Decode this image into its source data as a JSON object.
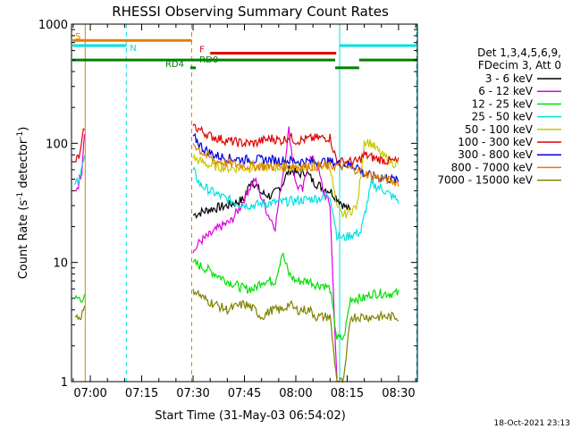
{
  "chart_data": {
    "type": "line",
    "title": "RHESSI Observing Summary Count Rates",
    "xlabel": "Start Time (31-May-03 06:54:02)",
    "ylabel": "Count Rate (s",
    "ylabel_sup": "-1",
    "ylabel_end": " detector",
    "ylabel_sup2": "-1",
    "ylabel_close": ")",
    "y_scale": "log",
    "ylim": [
      1,
      1000
    ],
    "xlim_minutes": [
      -5.5,
      95.5
    ],
    "x_ticks": [
      {
        "label": "07:00",
        "min": 0
      },
      {
        "label": "07:15",
        "min": 15
      },
      {
        "label": "07:30",
        "min": 30
      },
      {
        "label": "07:45",
        "min": 45
      },
      {
        "label": "08:00",
        "min": 60
      },
      {
        "label": "08:15",
        "min": 75
      },
      {
        "label": "08:30",
        "min": 90
      }
    ],
    "y_ticks": [
      {
        "label": "1",
        "value": 1
      },
      {
        "label": "10",
        "value": 10
      },
      {
        "label": "100",
        "value": 100
      },
      {
        "label": "1000",
        "value": 1000
      }
    ],
    "legend_header": [
      "Det 1,3,4,5,6,9,",
      "FDecim 3, Att 0"
    ],
    "series": [
      {
        "name": "3 - 6 keV",
        "color": "#000000",
        "points": [
          [
            30,
            25
          ],
          [
            35,
            28
          ],
          [
            40,
            30
          ],
          [
            45,
            34
          ],
          [
            47,
            50
          ],
          [
            50,
            38
          ],
          [
            53,
            36
          ],
          [
            56,
            45
          ],
          [
            58,
            60
          ],
          [
            61,
            55
          ],
          [
            63,
            58
          ],
          [
            65,
            48
          ],
          [
            68,
            42
          ],
          [
            70,
            40
          ],
          [
            72,
            35
          ],
          [
            74,
            30
          ],
          [
            76,
            27
          ]
        ]
      },
      {
        "name": "6 - 12 keV",
        "color": "#e000e0",
        "points": [
          [
            -4.5,
            40
          ],
          [
            -3.5,
            45
          ],
          [
            -2.5,
            60
          ],
          [
            -1.7,
            130
          ],
          [
            30,
            12
          ],
          [
            32,
            15
          ],
          [
            35,
            17
          ],
          [
            38,
            20
          ],
          [
            41,
            22
          ],
          [
            44,
            30
          ],
          [
            46,
            40
          ],
          [
            48,
            50
          ],
          [
            50,
            35
          ],
          [
            52,
            25
          ],
          [
            54,
            20
          ],
          [
            56,
            50
          ],
          [
            58,
            130
          ],
          [
            60,
            45
          ],
          [
            62,
            40
          ],
          [
            64,
            75
          ],
          [
            66,
            70
          ],
          [
            68,
            40
          ],
          [
            70,
            30
          ],
          [
            72,
            1
          ]
        ]
      },
      {
        "name": "12 - 25 keV",
        "color": "#00e000",
        "points": [
          [
            -4.5,
            5
          ],
          [
            -3,
            5
          ],
          [
            -1.7,
            5
          ],
          [
            30,
            10
          ],
          [
            35,
            8.5
          ],
          [
            40,
            7
          ],
          [
            45,
            6
          ],
          [
            48,
            6
          ],
          [
            50,
            7
          ],
          [
            54,
            7
          ],
          [
            56,
            12
          ],
          [
            58,
            8
          ],
          [
            60,
            7
          ],
          [
            64,
            7
          ],
          [
            66,
            6.5
          ],
          [
            68,
            6.5
          ],
          [
            70,
            6
          ],
          [
            72,
            2.3
          ],
          [
            74,
            2.3
          ],
          [
            76,
            5
          ],
          [
            80,
            5
          ],
          [
            82,
            5.5
          ],
          [
            85,
            5.5
          ],
          [
            88,
            5.5
          ],
          [
            90,
            5.5
          ]
        ]
      },
      {
        "name": "25 - 50 keV",
        "color": "#00e0e0",
        "points": [
          [
            -4.5,
            45
          ],
          [
            -3,
            55
          ],
          [
            -1.7,
            75
          ],
          [
            30,
            60
          ],
          [
            32,
            45
          ],
          [
            35,
            40
          ],
          [
            38,
            36
          ],
          [
            41,
            33
          ],
          [
            44,
            31
          ],
          [
            47,
            30
          ],
          [
            50,
            31
          ],
          [
            55,
            32
          ],
          [
            60,
            33
          ],
          [
            64,
            34
          ],
          [
            68,
            35
          ],
          [
            70,
            37
          ],
          [
            72,
            17
          ],
          [
            74,
            16
          ],
          [
            76,
            17
          ],
          [
            79,
            18
          ],
          [
            82,
            45
          ],
          [
            85,
            42
          ],
          [
            88,
            36
          ],
          [
            90,
            33
          ]
        ]
      },
      {
        "name": "50 - 100 keV",
        "color": "#c8c800",
        "points": [
          [
            30,
            75
          ],
          [
            35,
            65
          ],
          [
            40,
            62
          ],
          [
            45,
            62
          ],
          [
            50,
            63
          ],
          [
            55,
            63
          ],
          [
            60,
            63
          ],
          [
            65,
            64
          ],
          [
            70,
            65
          ],
          [
            72,
            28
          ],
          [
            74,
            25
          ],
          [
            76,
            27
          ],
          [
            78,
            30
          ],
          [
            80,
            105
          ],
          [
            82,
            100
          ],
          [
            85,
            80
          ],
          [
            88,
            70
          ],
          [
            90,
            65
          ]
        ]
      },
      {
        "name": "100 - 300 keV",
        "color": "#e00000",
        "points": [
          [
            -4.5,
            70
          ],
          [
            -3,
            80
          ],
          [
            -1.7,
            140
          ],
          [
            30,
            140
          ],
          [
            35,
            115
          ],
          [
            40,
            105
          ],
          [
            45,
            100
          ],
          [
            48,
            100
          ],
          [
            50,
            105
          ],
          [
            53,
            110
          ],
          [
            56,
            105
          ],
          [
            58,
            115
          ],
          [
            60,
            105
          ],
          [
            65,
            110
          ],
          [
            70,
            112
          ],
          [
            72,
            70
          ],
          [
            75,
            70
          ],
          [
            78,
            70
          ],
          [
            80,
            80
          ],
          [
            83,
            75
          ],
          [
            86,
            72
          ],
          [
            90,
            70
          ]
        ]
      },
      {
        "name": "300 - 800 keV",
        "color": "#0000e0",
        "points": [
          [
            30,
            115
          ],
          [
            33,
            90
          ],
          [
            36,
            80
          ],
          [
            40,
            75
          ],
          [
            45,
            73
          ],
          [
            50,
            73
          ],
          [
            55,
            72
          ],
          [
            60,
            71
          ],
          [
            65,
            70
          ],
          [
            70,
            70
          ],
          [
            72,
            68
          ],
          [
            75,
            66
          ],
          [
            78,
            64
          ],
          [
            80,
            55
          ],
          [
            84,
            52
          ],
          [
            88,
            50
          ],
          [
            90,
            48
          ]
        ]
      },
      {
        "name": "800 - 7000 keV",
        "color": "#e08000",
        "points": [
          [
            30,
            100
          ],
          [
            33,
            82
          ],
          [
            36,
            72
          ],
          [
            40,
            68
          ],
          [
            45,
            65
          ],
          [
            50,
            64
          ],
          [
            55,
            64
          ],
          [
            60,
            64
          ],
          [
            65,
            64
          ],
          [
            70,
            64
          ],
          [
            72,
            65
          ],
          [
            75,
            62
          ],
          [
            78,
            60
          ],
          [
            80,
            56
          ],
          [
            84,
            52
          ],
          [
            88,
            48
          ],
          [
            90,
            47
          ]
        ]
      },
      {
        "name": "7000 - 15000 keV",
        "color": "#808000",
        "points": [
          [
            -4.5,
            3.5
          ],
          [
            -3,
            3.5
          ],
          [
            -1.7,
            4
          ],
          [
            30,
            6
          ],
          [
            33,
            5
          ],
          [
            36,
            4.5
          ],
          [
            40,
            4
          ],
          [
            45,
            4.5
          ],
          [
            48,
            4
          ],
          [
            50,
            3.5
          ],
          [
            53,
            4
          ],
          [
            56,
            4
          ],
          [
            58,
            4.5
          ],
          [
            60,
            4
          ],
          [
            64,
            4
          ],
          [
            66,
            3.5
          ],
          [
            68,
            3.5
          ],
          [
            70,
            3.5
          ],
          [
            72,
            1
          ],
          [
            74,
            1
          ],
          [
            76,
            3.5
          ],
          [
            80,
            3.5
          ],
          [
            84,
            3.5
          ],
          [
            88,
            3.5
          ],
          [
            90,
            3.5
          ]
        ]
      }
    ],
    "state_bars": [
      {
        "label": "S",
        "label_color": "#e08000",
        "color": "#e08000",
        "y": 730,
        "segments": [
          [
            -5.2,
            29.6
          ]
        ]
      },
      {
        "label": "N",
        "label_color": "#00e0e0",
        "color": "#00e0e0",
        "y": 660,
        "segments": [
          [
            -5.2,
            10.5
          ],
          [
            72.8,
            95.3
          ]
        ]
      },
      {
        "label": "F",
        "label_color": "#e00000",
        "color": "#e00000",
        "y": 570,
        "segments": [
          [
            35,
            71.8
          ]
        ]
      },
      {
        "label": "RD0",
        "label_color": "#008000",
        "color": "#008000",
        "y": 500,
        "segments": [
          [
            -5.2,
            71.5
          ],
          [
            78.5,
            95.3
          ]
        ]
      },
      {
        "label": "RD4",
        "label_color": "#008000",
        "color": "#008000",
        "y": 430,
        "segments": [
          [
            29.2,
            30.8
          ],
          [
            71.5,
            78.5
          ]
        ]
      }
    ],
    "vertical_lines": [
      {
        "min": -5.5,
        "color": "#00e0e0",
        "dash": false
      },
      {
        "min": -1.5,
        "color": "#e08000",
        "dash": false
      },
      {
        "min": 10.5,
        "color": "#00e0e0",
        "dash": true
      },
      {
        "min": 29.6,
        "color": "#e08000",
        "dash": true
      },
      {
        "min": 72.8,
        "color": "#00e0e0",
        "dash": false
      },
      {
        "min": 95.3,
        "color": "#00e0e0",
        "dash": true
      }
    ],
    "footer_date": "18-Oct-2021 23:13"
  }
}
